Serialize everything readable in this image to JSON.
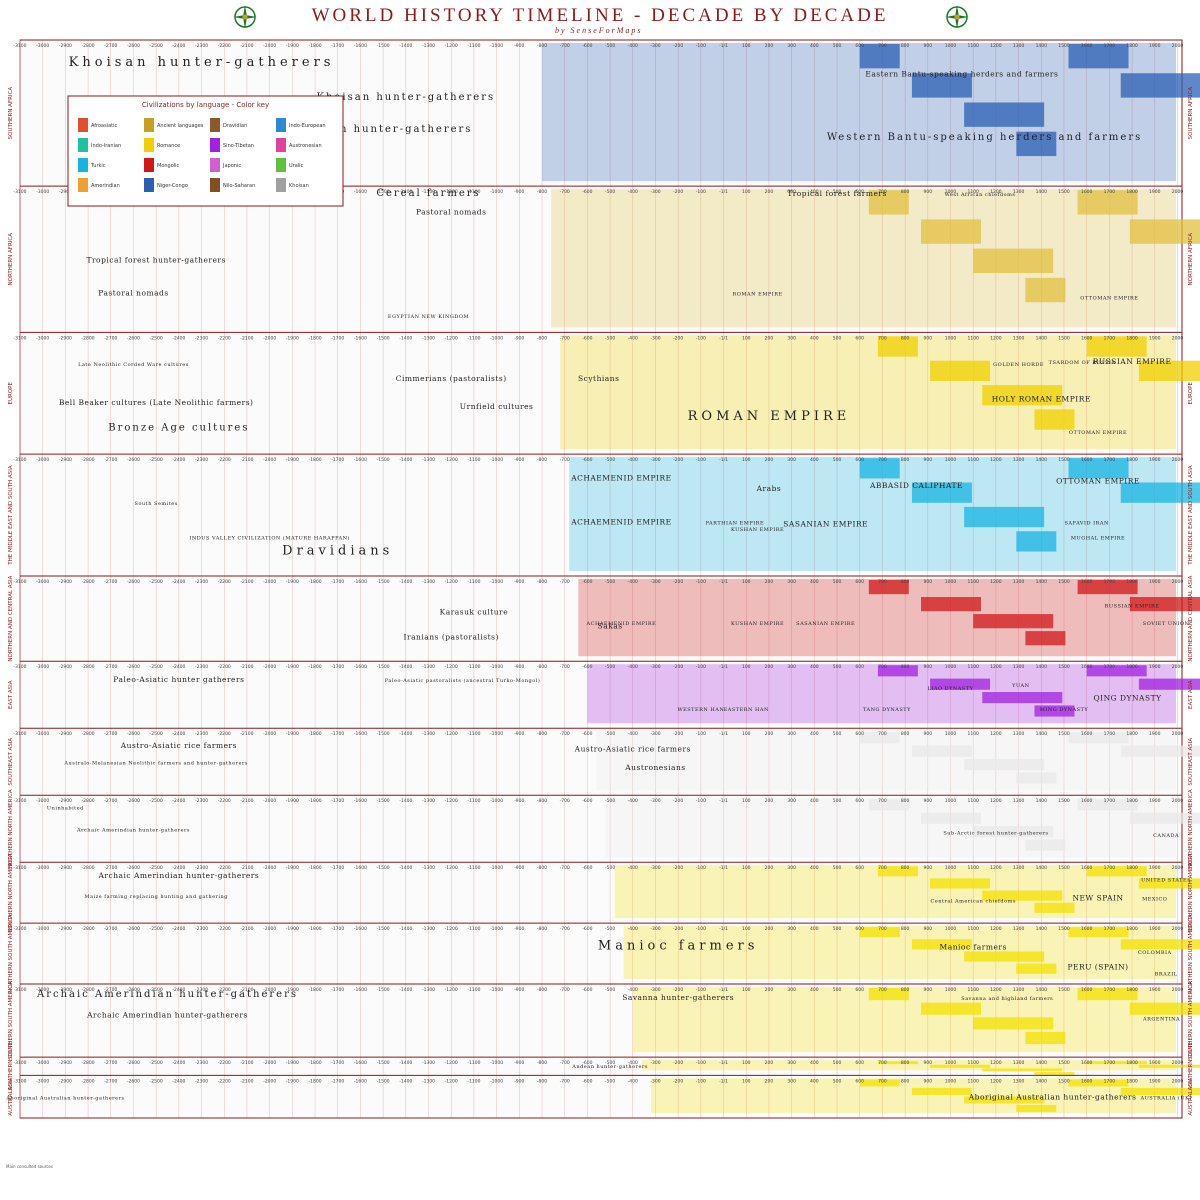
{
  "header": {
    "title": "WORLD HISTORY TIMELINE - DECADE BY DECADE",
    "byline": "by SenseForMaps"
  },
  "legend": {
    "title": "Civilizations by language - Color key",
    "items": [
      "Afroasiatic",
      "Ancient languages",
      "Dravidian",
      "Indo-European",
      "Indo-Iranian",
      "Romance",
      "Sino-Tibetan",
      "Austronesian",
      "Turkic",
      "Mongolic",
      "Japonic",
      "Uralic",
      "Amerindian",
      "Niger-Congo",
      "Nilo-Saharan",
      "Khoisan"
    ]
  },
  "chart_data": {
    "type": "timeline",
    "title": "WORLD HISTORY TIMELINE - DECADE BY DECADE",
    "x_axis": {
      "range": [
        -3100,
        2020
      ],
      "ticks": [
        -3100,
        -3000,
        -2900,
        -2800,
        -2700,
        -2600,
        -2500,
        -2400,
        -2300,
        -2200,
        -2100,
        -2000,
        -1900,
        -1800,
        -1700,
        -1600,
        -1500,
        -1400,
        -1300,
        -1200,
        -1100,
        -1000,
        -900,
        -800,
        -700,
        -600,
        -500,
        -400,
        -300,
        -200,
        -100,
        "-1/1",
        100,
        200,
        300,
        400,
        500,
        600,
        700,
        800,
        900,
        1000,
        1100,
        1200,
        1300,
        1400,
        1500,
        1600,
        1700,
        1800,
        1900,
        2000
      ]
    },
    "regions": [
      {
        "name": "SOUTHERN AFRICA",
        "color": "#2b5fb4",
        "labels": [
          {
            "text": "Khoisan hunter-gatherers",
            "x": -2300,
            "row": 0.12,
            "size": "xl"
          },
          {
            "text": "Khoisan hunter-gatherers",
            "x": -1400,
            "row": 0.38,
            "size": "l"
          },
          {
            "text": "Khoisan hunter-gatherers",
            "x": -1500,
            "row": 0.62,
            "size": "l"
          },
          {
            "text": "Eastern Bantu-speaking herders and farmers",
            "x": 1050,
            "row": 0.2,
            "size": "m"
          },
          {
            "text": "Western Bantu-speaking herders and farmers",
            "x": 1150,
            "row": 0.68,
            "size": "l"
          }
        ]
      },
      {
        "name": "NORTHERN AFRICA",
        "color": "#e0c040",
        "labels": [
          {
            "text": "Tropical forest hunter-gatherers",
            "x": -2500,
            "row": 0.05,
            "size": "m"
          },
          {
            "text": "Cereal farmers",
            "x": -1300,
            "row": 0.0,
            "size": "l"
          },
          {
            "text": "Tropical forest farmers",
            "x": 500,
            "row": 0.0,
            "size": "m"
          },
          {
            "text": "West African chiefdoms",
            "x": 1130,
            "row": 0.0,
            "size": "s"
          },
          {
            "text": "Pastoral nomads",
            "x": -1200,
            "row": 0.14,
            "size": "m"
          },
          {
            "text": "Tropical forest hunter-gatherers",
            "x": -2500,
            "row": 0.5,
            "size": "m"
          },
          {
            "text": "Pastoral nomads",
            "x": -2600,
            "row": 0.75,
            "size": "m"
          },
          {
            "text": "EGYPTIAN NEW KINGDOM",
            "x": -1300,
            "row": 0.92,
            "size": "s"
          },
          {
            "text": "ROMAN EMPIRE",
            "x": 150,
            "row": 0.75,
            "size": "s"
          },
          {
            "text": "OTTOMAN EMPIRE",
            "x": 1700,
            "row": 0.78,
            "size": "s"
          }
        ]
      },
      {
        "name": "EUROPE",
        "color": "#f0d000",
        "labels": [
          {
            "text": "Late Neolithic Corded Ware cultures",
            "x": -2600,
            "row": 0.22,
            "size": "s"
          },
          {
            "text": "Cimmerians (pastoralists)",
            "x": -1200,
            "row": 0.36,
            "size": "m"
          },
          {
            "text": "Scythians",
            "x": -550,
            "row": 0.36,
            "size": "m"
          },
          {
            "text": "Urnfield cultures",
            "x": -1000,
            "row": 0.62,
            "size": "m"
          },
          {
            "text": "Bell Beaker cultures (Late Neolithic farmers)",
            "x": -2500,
            "row": 0.58,
            "size": "m"
          },
          {
            "text": "Bronze Age cultures",
            "x": -2400,
            "row": 0.82,
            "size": "l"
          },
          {
            "text": "ROMAN EMPIRE",
            "x": 200,
            "row": 0.72,
            "size": "xl"
          },
          {
            "text": "GOLDEN HORDE",
            "x": 1300,
            "row": 0.22,
            "size": "s"
          },
          {
            "text": "TSARDOM OF RUSSIA",
            "x": 1580,
            "row": 0.2,
            "size": "s"
          },
          {
            "text": "RUSSIAN EMPIRE",
            "x": 1800,
            "row": 0.2,
            "size": "m"
          },
          {
            "text": "HOLY ROMAN EMPIRE",
            "x": 1400,
            "row": 0.55,
            "size": "m"
          },
          {
            "text": "OTTOMAN EMPIRE",
            "x": 1650,
            "row": 0.85,
            "size": "s"
          }
        ]
      },
      {
        "name": "THE MIDDLE EAST AND SOUTH ASIA",
        "color": "#18b4e0",
        "labels": [
          {
            "text": "ACHAEMENID EMPIRE",
            "x": -450,
            "row": 0.15,
            "size": "m"
          },
          {
            "text": "Arabs",
            "x": 200,
            "row": 0.25,
            "size": "m"
          },
          {
            "text": "ABBASID CALIPHATE",
            "x": 850,
            "row": 0.22,
            "size": "m"
          },
          {
            "text": "OTTOMAN EMPIRE",
            "x": 1650,
            "row": 0.18,
            "size": "m"
          },
          {
            "text": "South Semites",
            "x": -2500,
            "row": 0.38,
            "size": "s"
          },
          {
            "text": "ACHAEMENID EMPIRE",
            "x": -450,
            "row": 0.56,
            "size": "m"
          },
          {
            "text": "PARTHIAN EMPIRE",
            "x": 50,
            "row": 0.56,
            "size": "s"
          },
          {
            "text": "SASANIAN EMPIRE",
            "x": 450,
            "row": 0.58,
            "size": "m"
          },
          {
            "text": "KUSHAN EMPIRE",
            "x": 150,
            "row": 0.62,
            "size": "s"
          },
          {
            "text": "SAFAVID IRAN",
            "x": 1600,
            "row": 0.56,
            "size": "s"
          },
          {
            "text": "MUGHAL EMPIRE",
            "x": 1650,
            "row": 0.7,
            "size": "s"
          },
          {
            "text": "INDUS VALLEY CIVILIZATION (MATURE HARAPPAN)",
            "x": -2000,
            "row": 0.7,
            "size": "s"
          },
          {
            "text": "Dravidians",
            "x": -1700,
            "row": 0.84,
            "size": "xl"
          }
        ]
      },
      {
        "name": "NORTHERN AND CENTRAL ASIA",
        "color": "#d01818",
        "labels": [
          {
            "text": "Karasuk culture",
            "x": -1100,
            "row": 0.4,
            "size": "m"
          },
          {
            "text": "Iranians (pastoralists)",
            "x": -1200,
            "row": 0.75,
            "size": "m"
          },
          {
            "text": "Sakas",
            "x": -500,
            "row": 0.6,
            "size": "m"
          },
          {
            "text": "ACHAEMENID EMPIRE",
            "x": -450,
            "row": 0.55,
            "size": "s"
          },
          {
            "text": "KUSHAN EMPIRE",
            "x": 150,
            "row": 0.55,
            "size": "s"
          },
          {
            "text": "SASANIAN EMPIRE",
            "x": 450,
            "row": 0.55,
            "size": "s"
          },
          {
            "text": "RUSSIAN EMPIRE",
            "x": 1800,
            "row": 0.3,
            "size": "s"
          },
          {
            "text": "SOVIET UNION",
            "x": 1950,
            "row": 0.55,
            "size": "s"
          }
        ]
      },
      {
        "name": "EAST ASIA",
        "color": "#a020e0",
        "labels": [
          {
            "text": "Paleo-Asiatic hunter gatherers",
            "x": -2400,
            "row": 0.2,
            "size": "m"
          },
          {
            "text": "Paleo-Asiatic pastoralists (ancestral Turko-Mongol)",
            "x": -1150,
            "row": 0.2,
            "size": "s"
          },
          {
            "text": "LIAO DYNASTY",
            "x": 1000,
            "row": 0.35,
            "size": "s"
          },
          {
            "text": "YUAN",
            "x": 1310,
            "row": 0.3,
            "size": "s"
          },
          {
            "text": "WESTERN HAN",
            "x": -100,
            "row": 0.75,
            "size": "s"
          },
          {
            "text": "EASTERN HAN",
            "x": 100,
            "row": 0.75,
            "size": "s"
          },
          {
            "text": "TANG DYNASTY",
            "x": 720,
            "row": 0.75,
            "size": "s"
          },
          {
            "text": "MING DYNASTY",
            "x": 1500,
            "row": 0.75,
            "size": "s"
          },
          {
            "text": "QING DYNASTY",
            "x": 1780,
            "row": 0.55,
            "size": "m"
          }
        ]
      },
      {
        "name": "SOUTHEAST ASIA",
        "color": "#e8e8e8",
        "labels": [
          {
            "text": "Austro-Asiatic rice farmers",
            "x": -2400,
            "row": 0.18,
            "size": "m"
          },
          {
            "text": "Austro-Asiatic rice farmers",
            "x": -400,
            "row": 0.25,
            "size": "m"
          },
          {
            "text": "Australo-Melanesian Neolithic farmers and hunter-gatherers",
            "x": -2500,
            "row": 0.5,
            "size": "s"
          },
          {
            "text": "Austronesians",
            "x": -300,
            "row": 0.6,
            "size": "m"
          }
        ]
      },
      {
        "name": "NORTHERN NORTH AMERICA",
        "color": "#e8e8e8",
        "labels": [
          {
            "text": "Uninhabited",
            "x": -2900,
            "row": 0.08,
            "size": "s"
          },
          {
            "text": "Archaic Amerindian hunter-gatherers",
            "x": -2600,
            "row": 0.5,
            "size": "s"
          },
          {
            "text": "Sub-Arctic forest hunter-gatherers",
            "x": 1200,
            "row": 0.55,
            "size": "s"
          },
          {
            "text": "CANADA",
            "x": 1950,
            "row": 0.6,
            "size": "s"
          }
        ]
      },
      {
        "name": "SOUTHERN NORTH AMERICA",
        "color": "#f4e000",
        "labels": [
          {
            "text": "Archaic Amerindian hunter-gatherers",
            "x": -2400,
            "row": 0.12,
            "size": "m"
          },
          {
            "text": "Maize farming replacing hunting and gathering",
            "x": -2500,
            "row": 0.55,
            "size": "s"
          },
          {
            "text": "UNITED STATES",
            "x": 1950,
            "row": 0.2,
            "size": "s"
          },
          {
            "text": "NEW SPAIN",
            "x": 1650,
            "row": 0.6,
            "size": "m"
          },
          {
            "text": "MEXICO",
            "x": 1900,
            "row": 0.6,
            "size": "s"
          },
          {
            "text": "Central American chiefdoms",
            "x": 1100,
            "row": 0.65,
            "size": "s"
          }
        ]
      },
      {
        "name": "NORTHERN SOUTH AMERICA",
        "color": "#f4e000",
        "labels": [
          {
            "text": "Manioc farmers",
            "x": -200,
            "row": 0.35,
            "size": "xl"
          },
          {
            "text": "Manioc farmers",
            "x": 1100,
            "row": 0.35,
            "size": "m"
          },
          {
            "text": "PERU (SPAIN)",
            "x": 1650,
            "row": 0.78,
            "size": "m"
          },
          {
            "text": "COLOMBIA",
            "x": 1900,
            "row": 0.45,
            "size": "s"
          },
          {
            "text": "BRAZIL",
            "x": 1950,
            "row": 0.9,
            "size": "s"
          }
        ]
      },
      {
        "name": "SOUTHERN SOUTH AMERICA",
        "color": "#f4e000",
        "labels": [
          {
            "text": "Archaic Amerindian hunter-gatherers",
            "x": -2450,
            "row": 0.05,
            "size": "l"
          },
          {
            "text": "Savanna hunter-gatherers",
            "x": -200,
            "row": 0.1,
            "size": "m"
          },
          {
            "text": "Savanna and highland farmers",
            "x": 1250,
            "row": 0.1,
            "size": "s"
          },
          {
            "text": "Archaic Amerindian hunter-gatherers",
            "x": -2450,
            "row": 0.4,
            "size": "m"
          },
          {
            "text": "ARGENTINA",
            "x": 1930,
            "row": 0.45,
            "size": "s"
          }
        ]
      },
      {
        "name": "SOUTHERN CONE",
        "color": "#f4e000",
        "labels": [
          {
            "text": "Andean hunter-gatherers",
            "x": -500,
            "row": 0.2,
            "size": "s"
          }
        ]
      },
      {
        "name": "AUSTRALASIA",
        "color": "#f4e000",
        "labels": [
          {
            "text": "Aboriginal Australian hunter-gatherers",
            "x": -2900,
            "row": 0.5,
            "size": "s"
          },
          {
            "text": "Aboriginal Australian hunter-gatherers",
            "x": 1450,
            "row": 0.5,
            "size": "m"
          },
          {
            "text": "AUSTRALIA (UK)",
            "x": 1950,
            "row": 0.5,
            "size": "s"
          }
        ]
      }
    ]
  },
  "footer": {
    "notes": "Main consulted sources"
  }
}
